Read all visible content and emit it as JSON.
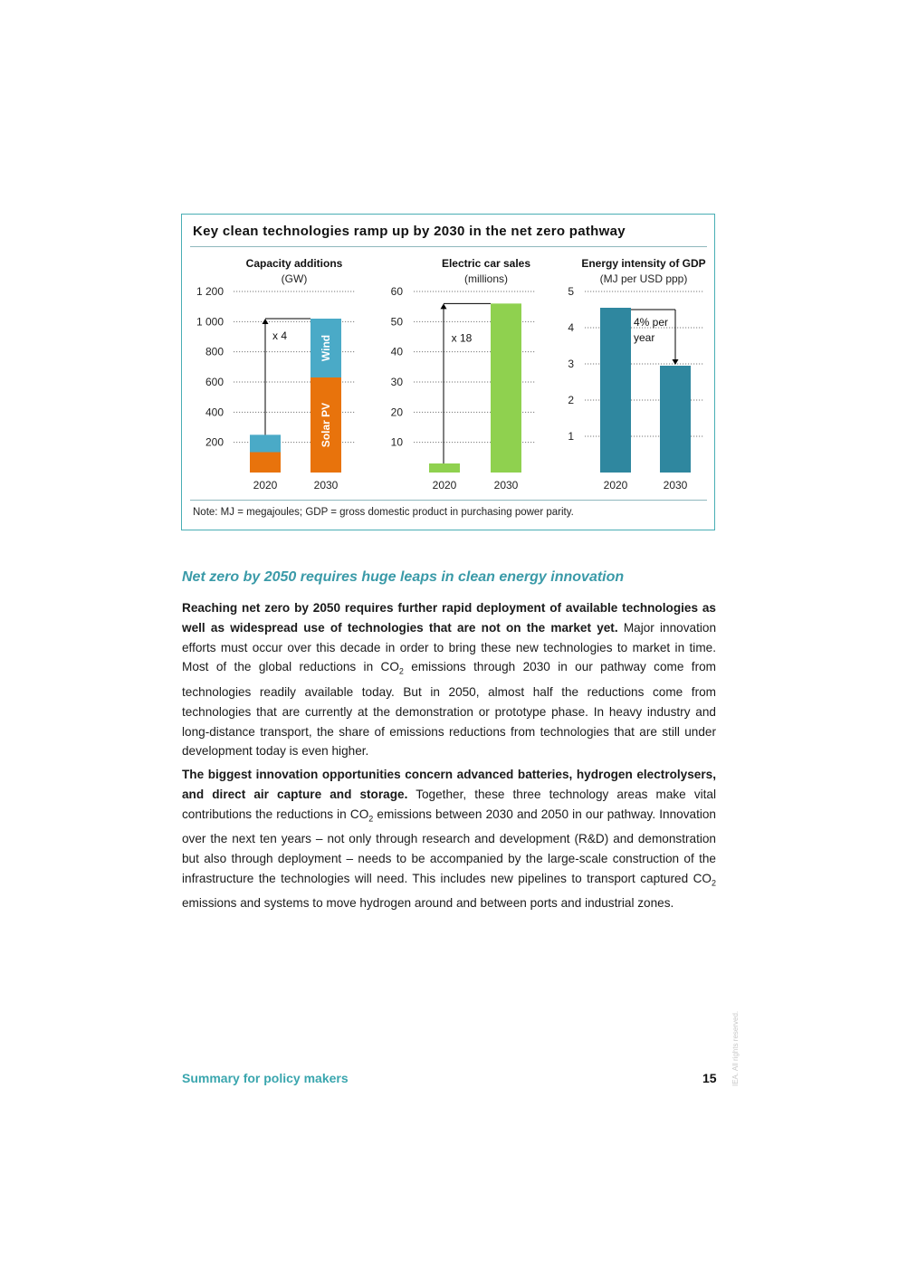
{
  "figure": {
    "title": "Key clean technologies ramp up by 2030 in the net zero pathway",
    "note": "Note: MJ = megajoules; GDP = gross domestic product in purchasing power parity."
  },
  "chart_data": [
    {
      "type": "bar",
      "title": "Capacity additions",
      "subtitle": "(GW)",
      "categories": [
        "2020",
        "2030"
      ],
      "series": [
        {
          "name": "Solar PV",
          "values": [
            135,
            630
          ],
          "color": "#e8730c"
        },
        {
          "name": "Wind",
          "values": [
            115,
            390
          ],
          "color": "#4aaac7"
        }
      ],
      "stacked": true,
      "ylim": [
        0,
        1200
      ],
      "yticks": [
        200,
        400,
        600,
        800,
        1000,
        1200
      ],
      "ytick_labels": [
        "200",
        "400",
        "600",
        "800",
        "1 000",
        "1 200"
      ],
      "annotation": "x 4",
      "grid": true
    },
    {
      "type": "bar",
      "title": "Electric car sales",
      "subtitle": "(millions)",
      "categories": [
        "2020",
        "2030"
      ],
      "series": [
        {
          "values": [
            3,
            56
          ],
          "color": "#8fd14f"
        }
      ],
      "ylim": [
        0,
        60
      ],
      "yticks": [
        10,
        20,
        30,
        40,
        50,
        60
      ],
      "ytick_labels": [
        "10",
        "20",
        "30",
        "40",
        "50",
        "60"
      ],
      "annotation": "x 18",
      "grid": true
    },
    {
      "type": "bar",
      "title": "Energy intensity of GDP",
      "subtitle": "(MJ per USD ppp)",
      "categories": [
        "2020",
        "2030"
      ],
      "series": [
        {
          "values": [
            4.55,
            2.95
          ],
          "color": "#2f879f"
        }
      ],
      "ylim": [
        0,
        5
      ],
      "yticks": [
        1,
        2,
        3,
        4,
        5
      ],
      "ytick_labels": [
        "1",
        "2",
        "3",
        "4",
        "5"
      ],
      "annotation": "4% per year",
      "grid": true
    }
  ],
  "section": {
    "heading": "Net zero by 2050 requires huge leaps in clean energy innovation"
  },
  "paragraphs": {
    "p1_bold": "Reaching net zero by 2050 requires further rapid deployment of available technologies as well as widespread use of technologies that are not on the market yet.",
    "p1_text_a": " Major innovation efforts must occur over this decade in order to bring these new technologies to market in time. Most of the global reductions in CO",
    "p1_text_b": " emissions through 2030 in our pathway come from technologies readily available today. But in 2050, almost half the reductions come from technologies that are currently at the demonstration or prototype phase. In heavy industry and long-distance transport, the share of emissions reductions from technologies that are still under development today is even higher.",
    "p2_bold": "The biggest innovation opportunities concern advanced batteries, hydrogen electrolysers, and direct air capture and storage.",
    "p2_text_a": " Together, these three technology areas make vital contributions the reductions in CO",
    "p2_text_b": " emissions between 2030 and 2050 in our pathway. Innovation over the next ten years – not only through research and development (R&D) and demonstration but also through deployment – needs to be accompanied by the large-scale construction of the infrastructure the technologies will need. This includes new pipelines to transport captured CO",
    "p2_text_c": " emissions and systems to move hydrogen around and between ports and industrial zones.",
    "subscript": "2"
  },
  "footer": {
    "left": "Summary for policy makers",
    "page_number": "15",
    "rights": "IEA. All rights reserved."
  }
}
